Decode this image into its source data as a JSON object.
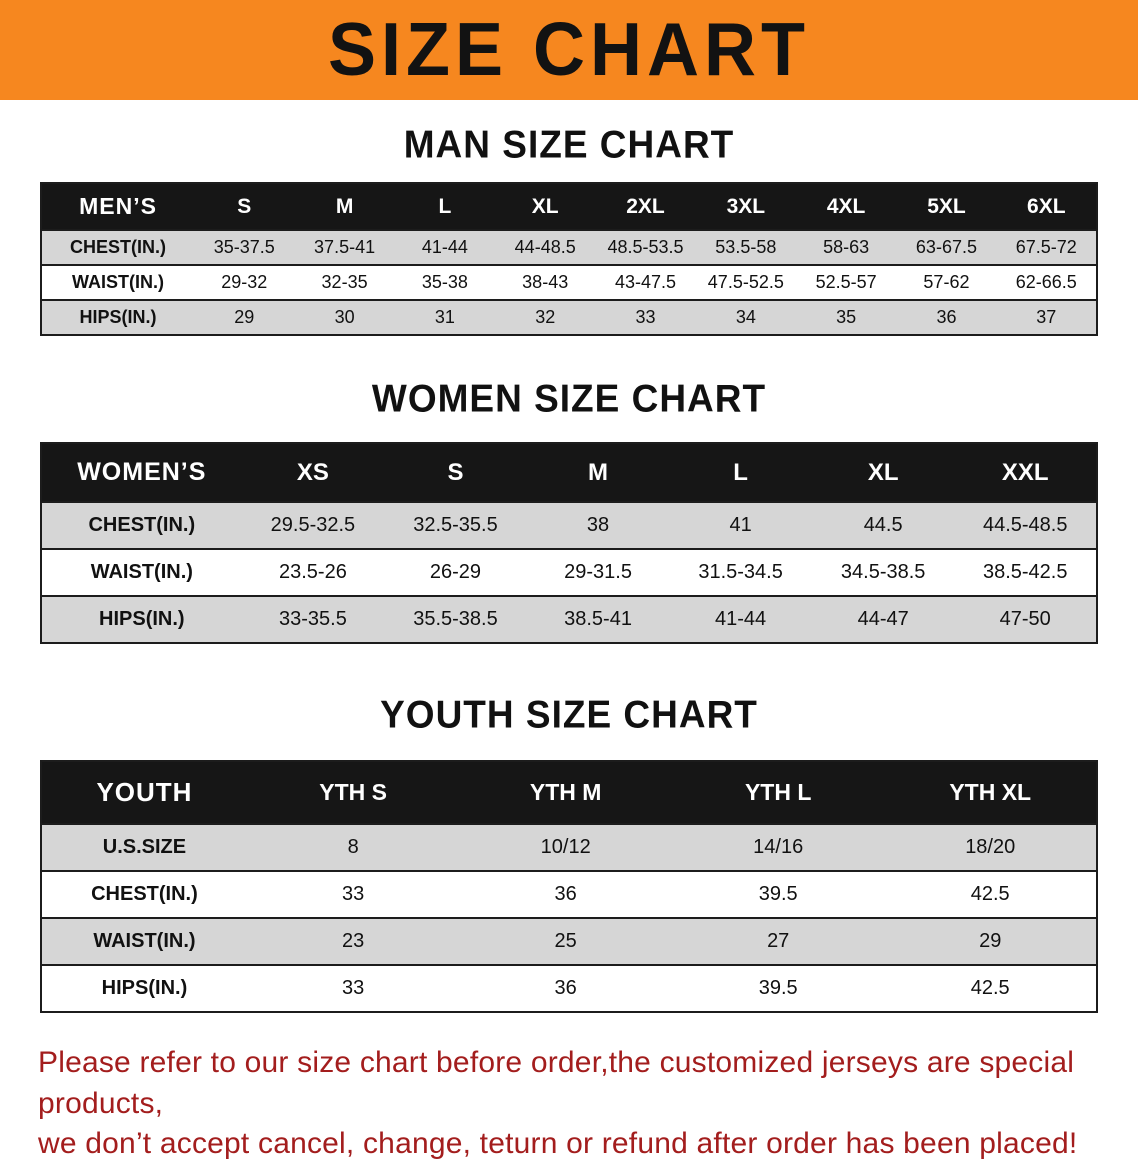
{
  "banner": {
    "title": "SIZE CHART",
    "background_color": "#f6871f"
  },
  "sections": [
    {
      "id": "men",
      "title": "MAN SIZE CHART",
      "header": [
        "MEN’S",
        "S",
        "M",
        "L",
        "XL",
        "2XL",
        "3XL",
        "4XL",
        "5XL",
        "6XL"
      ],
      "rows": [
        [
          "CHEST(IN.)",
          "35-37.5",
          "37.5-41",
          "41-44",
          "44-48.5",
          "48.5-53.5",
          "53.5-58",
          "58-63",
          "63-67.5",
          "67.5-72"
        ],
        [
          "WAIST(IN.)",
          "29-32",
          "32-35",
          "35-38",
          "38-43",
          "43-47.5",
          "47.5-52.5",
          "52.5-57",
          "57-62",
          "62-66.5"
        ],
        [
          "HIPS(IN.)",
          "29",
          "30",
          "31",
          "32",
          "33",
          "34",
          "35",
          "36",
          "37"
        ]
      ]
    },
    {
      "id": "women",
      "title": "WOMEN SIZE CHART",
      "header": [
        "WOMEN’S",
        "XS",
        "S",
        "M",
        "L",
        "XL",
        "XXL"
      ],
      "rows": [
        [
          "CHEST(IN.)",
          "29.5-32.5",
          "32.5-35.5",
          "38",
          "41",
          "44.5",
          "44.5-48.5"
        ],
        [
          "WAIST(IN.)",
          "23.5-26",
          "26-29",
          "29-31.5",
          "31.5-34.5",
          "34.5-38.5",
          "38.5-42.5"
        ],
        [
          "HIPS(IN.)",
          "33-35.5",
          "35.5-38.5",
          "38.5-41",
          "41-44",
          "44-47",
          "47-50"
        ]
      ]
    },
    {
      "id": "youth",
      "title": "YOUTH SIZE CHART",
      "header": [
        "YOUTH",
        "YTH S",
        "YTH M",
        "YTH L",
        "YTH XL"
      ],
      "rows": [
        [
          "U.S.SIZE",
          "8",
          "10/12",
          "14/16",
          "18/20"
        ],
        [
          "CHEST(IN.)",
          "33",
          "36",
          "39.5",
          "42.5"
        ],
        [
          "WAIST(IN.)",
          "23",
          "25",
          "27",
          "29"
        ],
        [
          "HIPS(IN.)",
          "33",
          "36",
          "39.5",
          "42.5"
        ]
      ]
    }
  ],
  "disclaimer": {
    "line1": "Please refer to our size chart before order,the customized jerseys are special products,",
    "line2": "we don’t accept cancel, change, teturn or refund after order has been placed!",
    "text_color": "#a31d1d"
  }
}
